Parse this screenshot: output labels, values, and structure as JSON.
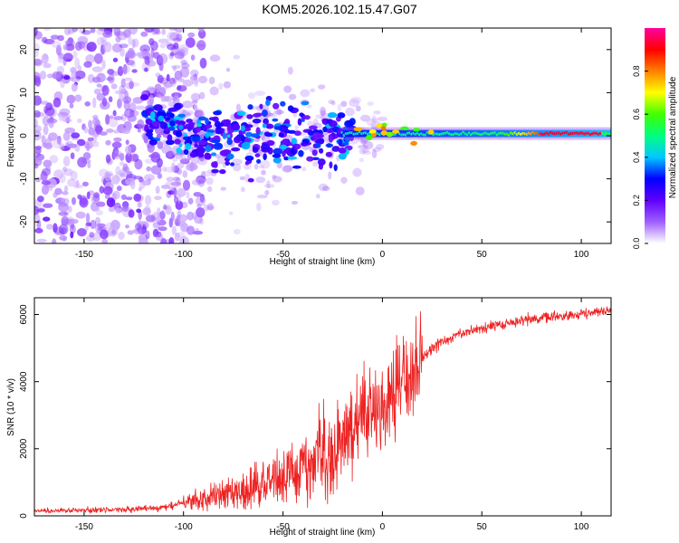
{
  "figure_title": "KOM5.2026.102.15.47.G07",
  "chart_data": [
    {
      "type": "heatmap",
      "name": "spectrogram",
      "xlabel": "Height of straight line (km)",
      "ylabel": "Frequency (Hz)",
      "xlim": [
        -175,
        115
      ],
      "ylim": [
        -25,
        25
      ],
      "xticks": [
        -150,
        -100,
        -50,
        0,
        50,
        100
      ],
      "yticks": [
        -20,
        -10,
        0,
        10,
        20
      ],
      "xtick_labels": [
        "-150",
        "-100",
        "-50",
        "0",
        "50",
        "100"
      ],
      "ytick_labels": [
        "-20",
        "-10",
        "0",
        "10",
        "20"
      ],
      "colorbar": {
        "label": "Normalized spectral amplitude",
        "range": [
          0,
          1
        ],
        "ticks": [
          0,
          0.2,
          0.4,
          0.6,
          0.8
        ],
        "tick_labels": [
          "0.0",
          "0.2",
          "0.4",
          "0.6",
          "0.8"
        ],
        "colors": [
          "#ffffff",
          "#9f5fff",
          "#6000ff",
          "#0000ff",
          "#00c8ff",
          "#00ff80",
          "#40ff00",
          "#ffff00",
          "#ff8000",
          "#ff0000",
          "#ff00a0"
        ]
      },
      "features": {
        "scattered_noise_x": [
          -175,
          -100
        ],
        "cluster_band_x": [
          -120,
          -15
        ],
        "cluster_center_freq": 0,
        "narrow_line_x": [
          -20,
          115
        ],
        "narrow_line_freq": 0.5,
        "strongest_x": [
          80,
          110
        ]
      }
    },
    {
      "type": "line",
      "name": "snr",
      "xlabel": "Height of straight line (km)",
      "ylabel": "SNR (10 * v/v)",
      "xlim": [
        -175,
        115
      ],
      "ylim": [
        0,
        6500
      ],
      "xticks": [
        -150,
        -100,
        -50,
        0,
        50,
        100
      ],
      "yticks": [
        0,
        2000,
        4000,
        6000
      ],
      "xtick_labels": [
        "-150",
        "-100",
        "-50",
        "0",
        "50",
        "100"
      ],
      "ytick_labels": [
        "0",
        "2000",
        "4000",
        "6000"
      ],
      "color": "#ee2222",
      "series": [
        {
          "name": "SNR",
          "x": [
            -175,
            -150,
            -125,
            -110,
            -100,
            -90,
            -80,
            -70,
            -60,
            -50,
            -40,
            -30,
            -20,
            -15,
            -10,
            -5,
            0,
            5,
            10,
            15,
            20,
            25,
            30,
            40,
            50,
            60,
            70,
            80,
            90,
            100,
            110,
            115
          ],
          "y": [
            150,
            170,
            190,
            250,
            380,
            520,
            650,
            780,
            950,
            1150,
            1500,
            1850,
            2200,
            2450,
            2900,
            3100,
            3400,
            3600,
            3850,
            4300,
            4700,
            5000,
            5200,
            5450,
            5600,
            5700,
            5800,
            5880,
            5950,
            6030,
            6100,
            6150
          ]
        }
      ]
    }
  ]
}
